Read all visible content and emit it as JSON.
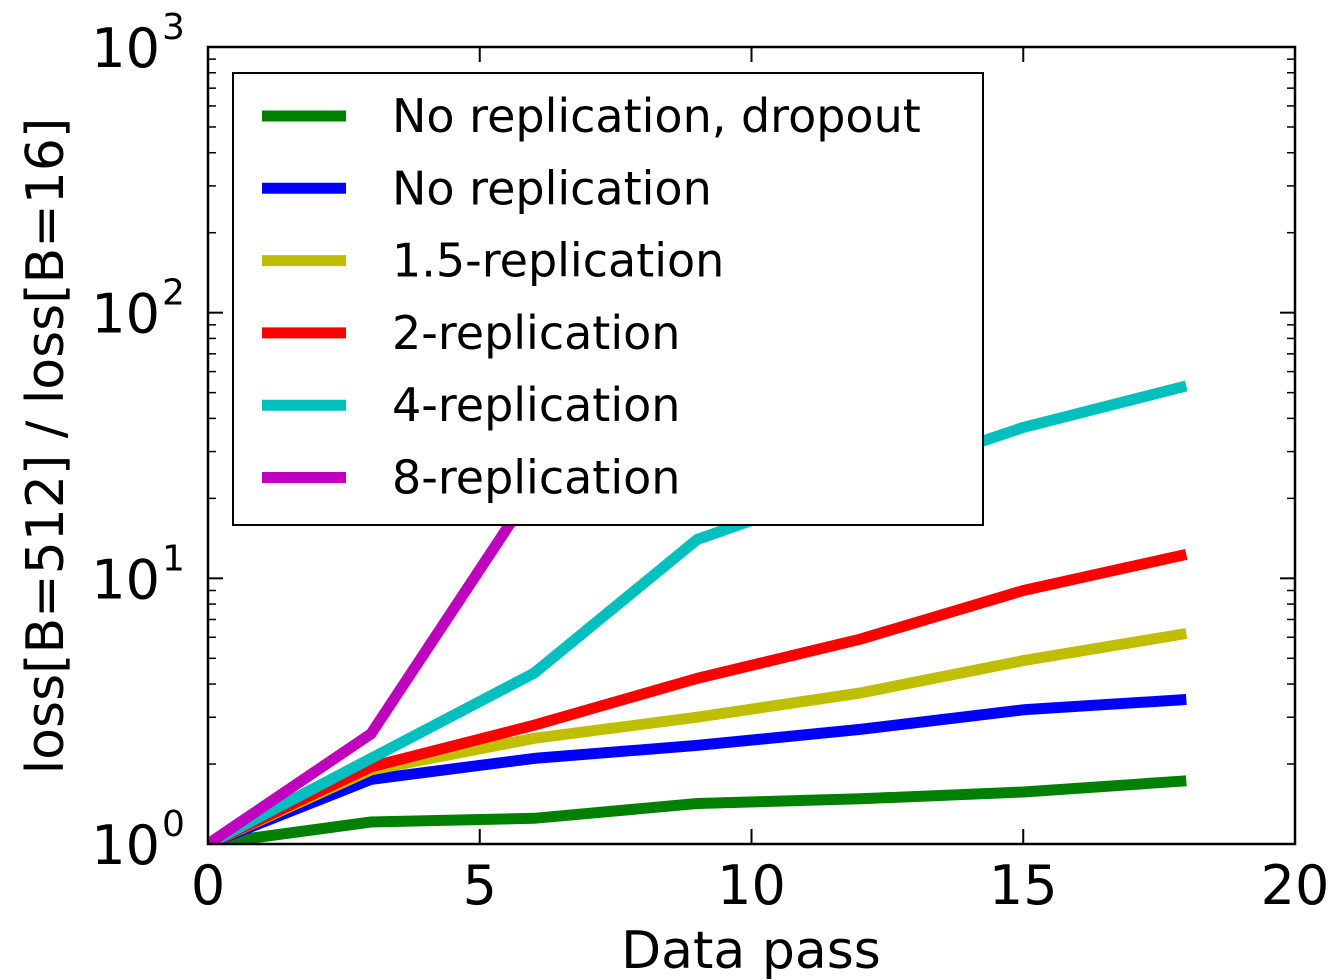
{
  "chart_data": {
    "type": "line",
    "title": "",
    "xlabel": "Data pass",
    "ylabel": "loss[B=512] / loss[B=16]",
    "xlim": [
      0,
      20
    ],
    "ylim": [
      1,
      1000
    ],
    "yscale": "log",
    "xticks": [
      "0",
      "5",
      "10",
      "15",
      "20"
    ],
    "yticks": [
      {
        "value": 1,
        "base": "10",
        "exp": "0"
      },
      {
        "value": 10,
        "base": "10",
        "exp": "1"
      },
      {
        "value": 100,
        "base": "10",
        "exp": "2"
      },
      {
        "value": 1000,
        "base": "10",
        "exp": "3"
      }
    ],
    "grid": false,
    "legend_position": "top-left",
    "series": [
      {
        "name": "No replication, dropout",
        "color": "#008000",
        "x": [
          0,
          3,
          6,
          9,
          12,
          15,
          18
        ],
        "y": [
          1.0,
          1.21,
          1.25,
          1.42,
          1.48,
          1.57,
          1.73
        ]
      },
      {
        "name": "No replication",
        "color": "#0000ff",
        "x": [
          0,
          3,
          6,
          9,
          12,
          15,
          18
        ],
        "y": [
          1.0,
          1.75,
          2.1,
          2.35,
          2.7,
          3.2,
          3.5
        ]
      },
      {
        "name": "1.5-replication",
        "color": "#bfbf00",
        "x": [
          0,
          3,
          6,
          9,
          12,
          15,
          18
        ],
        "y": [
          1.0,
          1.9,
          2.5,
          3.0,
          3.7,
          4.9,
          6.2
        ]
      },
      {
        "name": "2-replication",
        "color": "#ff0000",
        "x": [
          0,
          3,
          6,
          9,
          12,
          15,
          18
        ],
        "y": [
          1.0,
          1.95,
          2.8,
          4.2,
          5.9,
          9.0,
          12.3
        ]
      },
      {
        "name": "4-replication",
        "color": "#00bfbf",
        "x": [
          0,
          3,
          6,
          9,
          12,
          15,
          18
        ],
        "y": [
          1.0,
          2.1,
          4.4,
          14.0,
          23.0,
          37.0,
          53.0
        ]
      },
      {
        "name": "8-replication",
        "color": "#bf00bf",
        "x": [
          0,
          3,
          6,
          9
        ],
        "y": [
          1.0,
          2.6,
          22.0,
          80.0
        ]
      }
    ]
  }
}
